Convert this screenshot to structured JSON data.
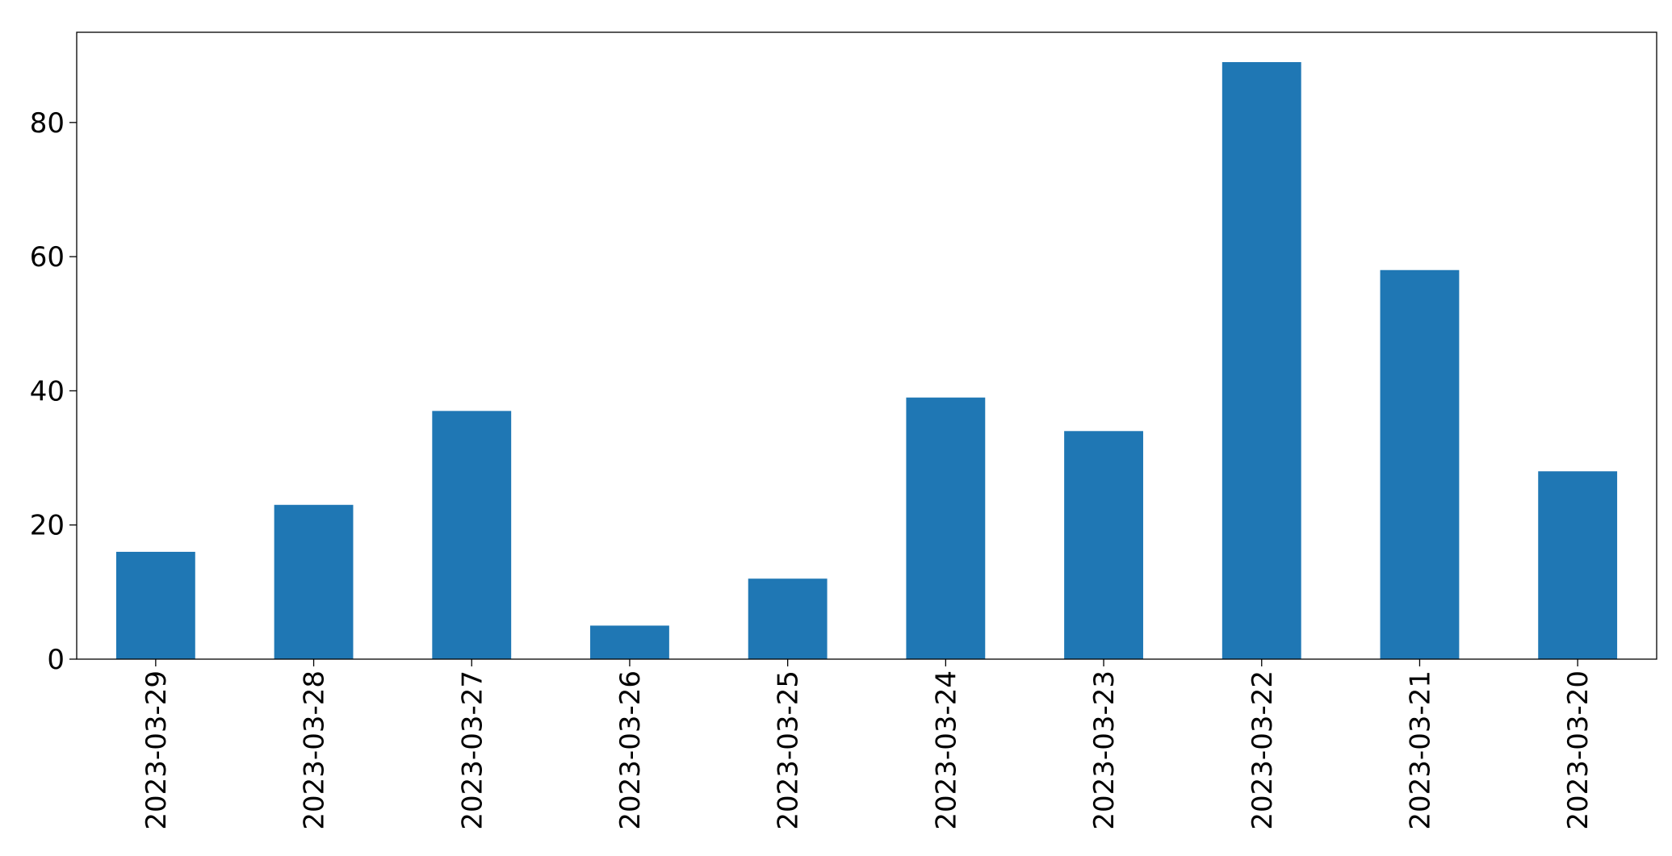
{
  "chart_data": {
    "type": "bar",
    "categories": [
      "2023-03-29",
      "2023-03-28",
      "2023-03-27",
      "2023-03-26",
      "2023-03-25",
      "2023-03-24",
      "2023-03-23",
      "2023-03-22",
      "2023-03-21",
      "2023-03-20"
    ],
    "values": [
      16,
      23,
      37,
      5,
      12,
      39,
      34,
      89,
      58,
      28
    ],
    "color": "#1f77b4",
    "ylim": [
      0,
      93.45
    ],
    "yticks": [
      0,
      20,
      40,
      60,
      80
    ],
    "grid": false
  }
}
